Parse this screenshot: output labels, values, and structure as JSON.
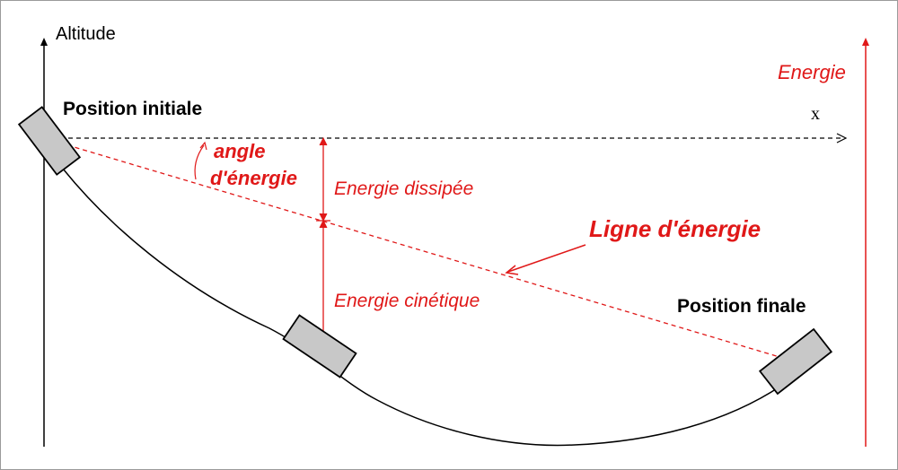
{
  "labels": {
    "altitude": "Altitude",
    "energie": "Energie",
    "x_axis": "x",
    "position_initiale": "Position initiale",
    "position_finale": "Position finale",
    "angle_line1": "angle",
    "angle_line2": "d'énergie",
    "energie_dissipee": "Energie dissipée",
    "energie_cinetique": "Energie cinétique",
    "ligne_energie": "Ligne d'énergie"
  },
  "colors": {
    "red": "#e01818",
    "black": "#000000",
    "block_fill": "#c8c8c8",
    "block_stroke": "#000000"
  }
}
